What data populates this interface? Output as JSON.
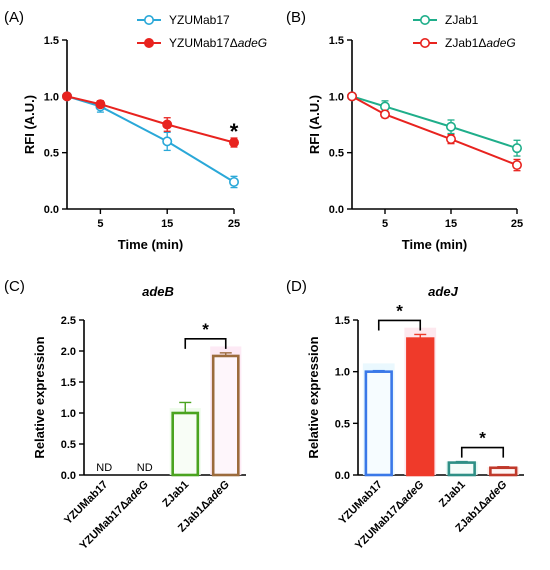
{
  "colors": {
    "blue": "#2aa8d8",
    "red": "#e8231f",
    "green": "#1fae8a",
    "bar_green": "#4aa31f",
    "bar_brown": "#9c6b3c",
    "bar_blue": "#3a78e8",
    "bar_red": "#ef3a2a",
    "bar_teal": "#2f8f86",
    "bar_darkred": "#c0392b"
  },
  "chart_data": [
    {
      "panel": "(A)",
      "type": "line",
      "xlabel": "Time (min)",
      "ylabel": "RFI (A.U.)",
      "ylim": [
        0,
        1.5
      ],
      "xlim": [
        0,
        25
      ],
      "yticks": [
        "0.0",
        "0.5",
        "1.0",
        "1.5"
      ],
      "xticks": [
        "5",
        "15",
        "25"
      ],
      "xtick_values": [
        5,
        15,
        25
      ],
      "legend_position": "top-right",
      "annotation": "*",
      "series": [
        {
          "name": "YZUMab17",
          "x": [
            0,
            5,
            15,
            25
          ],
          "y": [
            1.0,
            0.91,
            0.6,
            0.24
          ],
          "err": [
            0.02,
            0.05,
            0.08,
            0.05
          ],
          "marker": "open",
          "color": "#2aa8d8",
          "label_parts": [
            "YZUMab17"
          ]
        },
        {
          "name": "YZUMab17ΔadeG",
          "x": [
            0,
            5,
            15,
            25
          ],
          "y": [
            1.0,
            0.93,
            0.75,
            0.59
          ],
          "err": [
            0.02,
            0.03,
            0.06,
            0.04
          ],
          "marker": "filled",
          "color": "#e8231f",
          "label_parts": [
            "YZUMab17Δ",
            "adeG"
          ]
        }
      ]
    },
    {
      "panel": "(B)",
      "type": "line",
      "xlabel": "Time (min)",
      "ylabel": "RFI (A.U.)",
      "ylim": [
        0,
        1.5
      ],
      "xlim": [
        0,
        25
      ],
      "yticks": [
        "0.0",
        "0.5",
        "1.0",
        "1.5"
      ],
      "xticks": [
        "5",
        "15",
        "25"
      ],
      "xtick_values": [
        5,
        15,
        25
      ],
      "legend_position": "top-right",
      "series": [
        {
          "name": "ZJab1",
          "x": [
            0,
            5,
            15,
            25
          ],
          "y": [
            1.0,
            0.91,
            0.73,
            0.54
          ],
          "err": [
            0.02,
            0.05,
            0.06,
            0.07
          ],
          "marker": "open",
          "color": "#1fae8a",
          "label_parts": [
            "ZJab1"
          ]
        },
        {
          "name": "ZJab1ΔadeG",
          "x": [
            0,
            5,
            15,
            25
          ],
          "y": [
            1.0,
            0.84,
            0.62,
            0.39
          ],
          "err": [
            0.02,
            0.03,
            0.04,
            0.05
          ],
          "marker": "open",
          "color": "#e8231f",
          "label_parts": [
            "ZJab1Δ",
            "adeG"
          ]
        }
      ]
    },
    {
      "panel": "(C)",
      "type": "bar",
      "title": "adeB",
      "ylabel": "Relative expression",
      "ylim": [
        0,
        2.5
      ],
      "yticks": [
        "0.0",
        "0.5",
        "1.0",
        "1.5",
        "2.0",
        "2.5"
      ],
      "categories": [
        "YZUMab17",
        "YZUMab17ΔadeG",
        "ZJab1",
        "ZJab1ΔadeG"
      ],
      "category_parts": [
        [
          "YZUMab17"
        ],
        [
          "YZUMab17Δ",
          "adeG"
        ],
        [
          "ZJab1"
        ],
        [
          "ZJab1Δ",
          "adeG"
        ]
      ],
      "values": [
        null,
        null,
        1.0,
        1.92
      ],
      "err": [
        0,
        0,
        0.17,
        0.05
      ],
      "value_labels": [
        "ND",
        "ND",
        "",
        ""
      ],
      "bar_colors": [
        "#4aa31f",
        "#4aa31f",
        "#4aa31f",
        "#9c6b3c"
      ],
      "significance": [
        {
          "from": 2,
          "to": 3,
          "label": "*"
        }
      ]
    },
    {
      "panel": "(D)",
      "type": "bar",
      "title": "adeJ",
      "ylabel": "Relative expression",
      "ylim": [
        0,
        1.5
      ],
      "yticks": [
        "0.0",
        "0.5",
        "1.0",
        "1.5"
      ],
      "categories": [
        "YZUMab17",
        "YZUMab17ΔadeG",
        "ZJab1",
        "ZJab1ΔadeG"
      ],
      "category_parts": [
        [
          "YZUMab17"
        ],
        [
          "YZUMab17Δ",
          "adeG"
        ],
        [
          "ZJab1"
        ],
        [
          "ZJab1Δ",
          "adeG"
        ]
      ],
      "values": [
        1.0,
        1.32,
        0.12,
        0.07
      ],
      "err": [
        0.01,
        0.04,
        0.01,
        0.01
      ],
      "value_labels": [
        "",
        "",
        "",
        ""
      ],
      "bar_colors": [
        "#3a78e8",
        "#ef3a2a",
        "#2f8f86",
        "#c0392b"
      ],
      "bar_fill": [
        false,
        true,
        false,
        false
      ],
      "significance": [
        {
          "from": 0,
          "to": 1,
          "label": "*"
        },
        {
          "from": 2,
          "to": 3,
          "label": "*"
        }
      ]
    }
  ]
}
